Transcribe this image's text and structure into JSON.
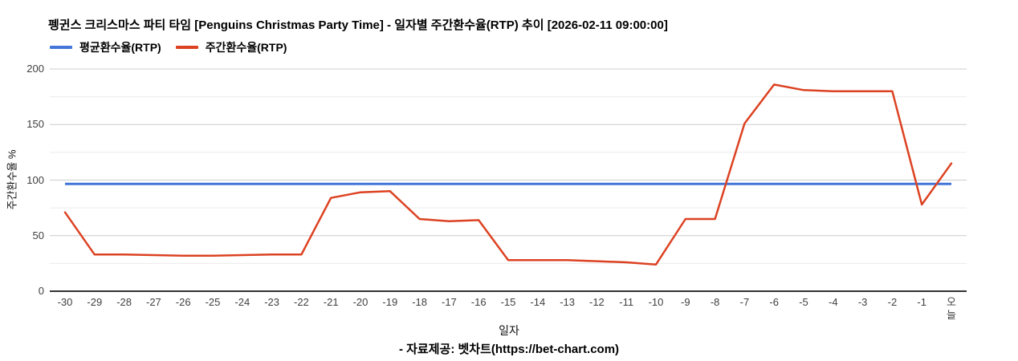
{
  "title": "펭귄스 크리스마스 파티 타임 [Penguins Christmas Party Time] - 일자별 주간환수율(RTP) 추이 [2026-02-11 09:00:00]",
  "legend": [
    {
      "label": "평균환수율(RTP)",
      "color": "#4376d8"
    },
    {
      "label": "주간환수율(RTP)",
      "color": "#dc4222"
    }
  ],
  "footer": "- 자료제공: 벳차트(https://bet-chart.com)",
  "chart_data": {
    "type": "line",
    "title": "펭귄스 크리스마스 파티 타임 [Penguins Christmas Party Time] - 일자별 주간환수율(RTP) 추이 [2026-02-11 09:00:00]",
    "xlabel": "일자",
    "ylabel": "주간환수율 %",
    "ylim": [
      0,
      200
    ],
    "yticks_major": [
      0,
      50,
      100,
      150,
      200
    ],
    "yticks_minor": [
      25,
      75,
      125,
      175
    ],
    "grid_major_color": "#cccccc",
    "grid_minor_color": "#ebebeb",
    "baseline_color": "#333333",
    "legend_position": "top-left",
    "categories": [
      "-30",
      "-29",
      "-28",
      "-27",
      "-26",
      "-25",
      "-24",
      "-23",
      "-22",
      "-21",
      "-20",
      "-19",
      "-18",
      "-17",
      "-16",
      "-15",
      "-14",
      "-13",
      "-12",
      "-11",
      "-10",
      "-9",
      "-8",
      "-7",
      "-6",
      "-5",
      "-4",
      "-3",
      "-2",
      "-1",
      "오늘"
    ],
    "series": [
      {
        "name": "평균환수율(RTP)",
        "color": "#4376d8",
        "type": "constant",
        "value": 96.5
      },
      {
        "name": "주간환수율(RTP)",
        "color": "#dc4222",
        "type": "line",
        "values": [
          71,
          33,
          33,
          32.5,
          32,
          32,
          32.5,
          33,
          33,
          84,
          89,
          90,
          65,
          63,
          64,
          28,
          28,
          28,
          27,
          26,
          24,
          65,
          65,
          151,
          186,
          181,
          180,
          180,
          180,
          78,
          115
        ]
      }
    ]
  }
}
